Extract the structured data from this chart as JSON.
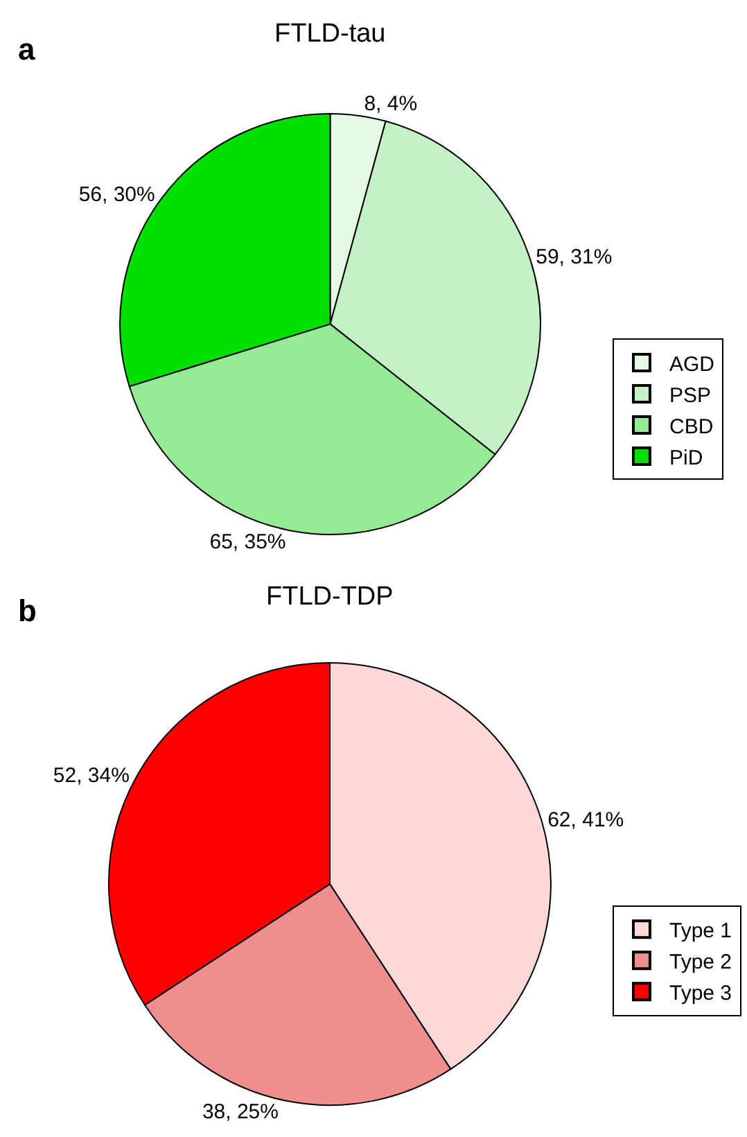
{
  "chart_data": [
    {
      "type": "pie",
      "title": "FTLD-tau",
      "annotations": [
        "a"
      ],
      "legend": "right",
      "categories": [
        "AGD",
        "PSP",
        "CBD",
        "PiD"
      ],
      "values": [
        8,
        59,
        65,
        56
      ],
      "value_labels": [
        "8, 4%",
        "59, 31%",
        "65, 35%",
        "56, 30%"
      ],
      "colors": [
        "#e4f9e4",
        "#c4f2c4",
        "#96ea96",
        "#00e000"
      ]
    },
    {
      "type": "pie",
      "title": "FTLD-TDP",
      "annotations": [
        "b"
      ],
      "legend": "right",
      "categories": [
        "Type 1",
        "Type 2",
        "Type 3"
      ],
      "values": [
        62,
        38,
        52
      ],
      "value_labels": [
        "62, 41%",
        "38, 25%",
        "52, 34%"
      ],
      "colors": [
        "#fcd8d8",
        "#ee8e8e",
        "#ff0000"
      ]
    }
  ]
}
